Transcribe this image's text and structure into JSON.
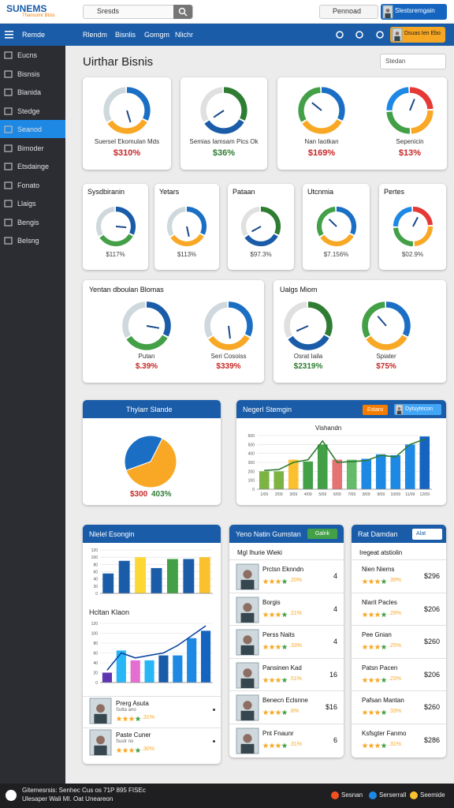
{
  "header": {
    "logo": "SUNEMS",
    "logo_sub": "Thansomr Btsis",
    "search": "Sresds",
    "dropdown": "Pennoad",
    "button": "Slestsremgain"
  },
  "nav": {
    "brand": "Remde",
    "items": [
      "Rlendm",
      "Bisnlis",
      "Gomgm",
      "Nlichr"
    ],
    "user": "Dsuas Ien Ebo"
  },
  "sidebar": {
    "items": [
      "Eucns",
      "Bisnsis",
      "Blanida",
      "Stedge",
      "Seanod",
      "Bimoder",
      "Etsdainge",
      "Fonato",
      "Llaigs",
      "Bengis",
      "Belsng"
    ],
    "active": 4
  },
  "page": {
    "title": "Uirthar Bisnis",
    "search": "Stedan"
  },
  "kpi_row1": [
    {
      "label": "Suersel Ekomulan Mds",
      "value": "$310%",
      "color": "#c62828"
    },
    {
      "label": "Semias Iamsam Pics Ok",
      "value": "$36%",
      "color": "#2e7d32"
    },
    {
      "label": "Nan Iaotkan",
      "value": "$169%",
      "color": "#c62828"
    },
    {
      "label": "Sepenicin",
      "value": "$13%",
      "color": "#c62828"
    }
  ],
  "kpi_row2": [
    {
      "label": "Sysdbiranin",
      "value": "$117%"
    },
    {
      "label": "Yetars",
      "value": "$113%"
    },
    {
      "label": "Pataan",
      "value": "$97.3%"
    },
    {
      "label": "Utcnmia",
      "value": "$7.156%"
    },
    {
      "label": "Pertes",
      "value": "$02.9%"
    }
  ],
  "panels": [
    {
      "title": "Yentan dboulan Blomas",
      "items": [
        {
          "label": "Putan",
          "value": "$.39%",
          "color": "#c62828"
        },
        {
          "label": "Seri Cosoiss",
          "value": "$339%",
          "color": "#c62828"
        }
      ]
    },
    {
      "title": "Ualgs Miom",
      "items": [
        {
          "label": "Osrat Iaila",
          "value": "$2319%",
          "color": "#2e7d32"
        },
        {
          "label": "Spiater",
          "value": "$75%",
          "color": "#c62828"
        }
      ]
    }
  ],
  "pie_card": {
    "title": "Thylarr Slande",
    "values": [
      62,
      38
    ],
    "colors": [
      "#f9a825",
      "#1a6fc4"
    ],
    "caption_amount": "$300",
    "caption_pct": "403%"
  },
  "bar_card": {
    "title": "Negerl Stemgin",
    "badge": "Estaro",
    "button": "Dytuytecon",
    "chart_title": "Vishandn",
    "ylim": [
      0,
      600
    ],
    "yticks": [
      0,
      100,
      200,
      300,
      400,
      500,
      600
    ],
    "categories": [
      "1/09",
      "2/09",
      "3/09",
      "4/09",
      "5/09",
      "6/09",
      "7/09",
      "8/09",
      "9/09",
      "10/09",
      "11/09",
      "12/09"
    ],
    "values": [
      200,
      200,
      330,
      310,
      500,
      330,
      330,
      340,
      390,
      380,
      500,
      590
    ],
    "colors": [
      "#7cb342",
      "#7cb342",
      "#fbc02d",
      "#43a047",
      "#43a047",
      "#e57373",
      "#66bb6a",
      "#1e88e5",
      "#1e88e5",
      "#1e88e5",
      "#1e88e5",
      "#1565c0"
    ],
    "line": {
      "values": [
        210,
        220,
        300,
        330,
        540,
        300,
        310,
        320,
        380,
        360,
        500,
        560
      ],
      "color": "#2e7d32"
    }
  },
  "left_card": {
    "title": "Nlelel Esongin",
    "chart1": {
      "ylim": [
        0,
        120
      ],
      "yticks": [
        0,
        20,
        40,
        60,
        80,
        100,
        120
      ],
      "values": [
        55,
        90,
        100,
        70,
        95,
        95,
        100
      ],
      "colors": [
        "#1a5ca8",
        "#1a5ca8",
        "#fdd835",
        "#1a5ca8",
        "#43a047",
        "#1a5ca8",
        "#fbc02d"
      ]
    },
    "chart2_title": "Hcltan Klaon",
    "chart2": {
      "ylim": [
        0,
        120
      ],
      "yticks": [
        0,
        20,
        40,
        60,
        80,
        100,
        120
      ],
      "values": [
        20,
        65,
        45,
        45,
        55,
        55,
        90,
        105
      ],
      "colors": [
        "#5e35b1",
        "#29b6f6",
        "#e56fd0",
        "#29b6f6",
        "#1a5ca8",
        "#1e88e5",
        "#1e88e5",
        "#1565c0"
      ],
      "line": {
        "values": [
          25,
          60,
          50,
          55,
          60,
          75,
          95,
          115
        ],
        "color": "#0d47a1"
      }
    },
    "people": [
      {
        "name": "Prerg Asuta",
        "sub": "Sutta ano",
        "pct": ".31%"
      },
      {
        "name": "Paste Cuner",
        "sub": "Sustr no",
        "pct": ".30%"
      }
    ]
  },
  "mid_card": {
    "title": "Yeno Natin Gumstan",
    "badge": "Galnk",
    "subtitle": "Mgl Ihurie Wieki",
    "rows": [
      {
        "name": "Prctsn Eknndn",
        "sub": ".20%",
        "value": "4"
      },
      {
        "name": "Borgis",
        "sub": ".21%",
        "value": "4"
      },
      {
        "name": "Perss Naits",
        "sub": ".33%",
        "value": "4"
      },
      {
        "name": "Pansinen Kad",
        "sub": ".51%",
        "value": "16"
      },
      {
        "name": "Benecn Eclsnne",
        "sub": ".8%",
        "value": "$16"
      },
      {
        "name": "Pnt Fnaunr",
        "sub": ".31%",
        "value": "6"
      }
    ]
  },
  "right_card": {
    "title": "Rat Damdan",
    "dropdown": "Alat",
    "subtitle": "Iregeat atstiolin",
    "rows": [
      {
        "name": "Nien Niems",
        "sub": ".39%",
        "value": "$296"
      },
      {
        "name": "Nlarit Pacles",
        "sub": ".29%",
        "value": "$206"
      },
      {
        "name": "Pee Gnian",
        "sub": ".25%",
        "value": "$260"
      },
      {
        "name": "Patsn Pacen",
        "sub": ".23%",
        "value": "$206"
      },
      {
        "name": "Pafsan Mantan",
        "sub": ".33%",
        "value": "$260"
      },
      {
        "name": "Ksfsgter Fanmo",
        "sub": ".31%",
        "value": "$286"
      }
    ]
  },
  "footer": {
    "line1": "Gitemesrsis: Senhec Cus os 71P 895 FISEc",
    "line2": "Ulesaper Wali MI. Oat Uneareon",
    "items": [
      "Sesnan",
      "Serserrall",
      "Seemide"
    ]
  }
}
